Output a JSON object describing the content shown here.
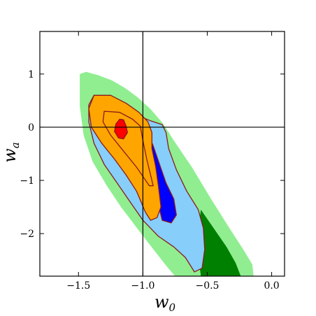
{
  "chart_data": {
    "type": "contour",
    "xlabel": "w",
    "xlabel_sub": "0",
    "ylabel": "w",
    "ylabel_sub": "a",
    "xlim": [
      -1.8,
      0.1
    ],
    "ylim": [
      -2.8,
      1.8
    ],
    "xticks": [
      -1.5,
      -1.0,
      -0.5,
      0.0
    ],
    "xtick_labels": [
      "−1.5",
      "−1.0",
      "−0.5",
      "0.0"
    ],
    "yticks": [
      1,
      0,
      -1,
      -2
    ],
    "ytick_labels": [
      "1",
      "0",
      "−1",
      "−2"
    ],
    "reference_lines": {
      "x": -1.0,
      "y": 0.0
    },
    "grid": false,
    "regions": [
      {
        "id": "outer-light-green",
        "fill": "#90ee90",
        "stroke": "none",
        "points": [
          [
            -1.49,
            1.0
          ],
          [
            -1.44,
            1.04
          ],
          [
            -1.35,
            0.98
          ],
          [
            -1.24,
            0.88
          ],
          [
            -1.14,
            0.74
          ],
          [
            -1.04,
            0.56
          ],
          [
            -0.94,
            0.34
          ],
          [
            -0.84,
            0.06
          ],
          [
            -0.76,
            -0.25
          ],
          [
            -0.62,
            -0.75
          ],
          [
            -0.47,
            -1.35
          ],
          [
            -0.34,
            -1.85
          ],
          [
            -0.22,
            -2.3
          ],
          [
            -0.15,
            -2.58
          ],
          [
            -0.14,
            -2.8
          ],
          [
            -0.75,
            -2.8
          ],
          [
            -0.82,
            -2.6
          ],
          [
            -0.95,
            -2.2
          ],
          [
            -1.06,
            -1.85
          ],
          [
            -1.17,
            -1.5
          ],
          [
            -1.28,
            -1.1
          ],
          [
            -1.39,
            -0.65
          ],
          [
            -1.46,
            -0.15
          ],
          [
            -1.49,
            0.4
          ]
        ]
      },
      {
        "id": "dark-green",
        "fill": "#008000",
        "stroke": "none",
        "points": [
          [
            -0.55,
            -1.55
          ],
          [
            -0.45,
            -1.9
          ],
          [
            -0.35,
            -2.25
          ],
          [
            -0.28,
            -2.55
          ],
          [
            -0.24,
            -2.8
          ],
          [
            -0.55,
            -2.8
          ],
          [
            -0.58,
            -2.2
          ]
        ]
      },
      {
        "id": "light-blue",
        "fill": "#87cefa",
        "stroke": "#8b1a1a",
        "points": [
          [
            -1.38,
            0.6
          ],
          [
            -1.3,
            0.55
          ],
          [
            -1.18,
            0.4
          ],
          [
            -1.06,
            0.24
          ],
          [
            -0.94,
            0.12
          ],
          [
            -0.85,
            0.05
          ],
          [
            -0.82,
            -0.1
          ],
          [
            -0.8,
            -0.4
          ],
          [
            -0.74,
            -0.8
          ],
          [
            -0.66,
            -1.2
          ],
          [
            -0.57,
            -1.55
          ],
          [
            -0.53,
            -1.9
          ],
          [
            -0.52,
            -2.3
          ],
          [
            -0.54,
            -2.65
          ],
          [
            -0.6,
            -2.72
          ],
          [
            -0.67,
            -2.45
          ],
          [
            -0.76,
            -2.25
          ],
          [
            -0.88,
            -2.05
          ],
          [
            -1.0,
            -1.75
          ],
          [
            -1.1,
            -1.4
          ],
          [
            -1.2,
            -1.05
          ],
          [
            -1.3,
            -0.7
          ],
          [
            -1.38,
            -0.3
          ],
          [
            -1.42,
            0.1
          ],
          [
            -1.42,
            0.42
          ]
        ]
      },
      {
        "id": "blue",
        "fill": "#0000ff",
        "stroke": "#8b1a1a",
        "points": [
          [
            -1.02,
            0.05
          ],
          [
            -0.97,
            -0.05
          ],
          [
            -0.92,
            -0.35
          ],
          [
            -0.87,
            -0.7
          ],
          [
            -0.82,
            -1.05
          ],
          [
            -0.76,
            -1.35
          ],
          [
            -0.74,
            -1.65
          ],
          [
            -0.78,
            -1.8
          ],
          [
            -0.85,
            -1.75
          ],
          [
            -0.88,
            -1.45
          ],
          [
            -0.93,
            -1.15
          ],
          [
            -1.0,
            -0.8
          ],
          [
            -1.06,
            -0.45
          ],
          [
            -1.1,
            -0.2
          ],
          [
            -1.08,
            -0.02
          ]
        ]
      },
      {
        "id": "orange",
        "fill": "#ffa500",
        "stroke": "#8b1a1a",
        "points": [
          [
            -1.38,
            0.6
          ],
          [
            -1.25,
            0.6
          ],
          [
            -1.13,
            0.45
          ],
          [
            -1.03,
            0.28
          ],
          [
            -0.96,
            0.1
          ],
          [
            -0.93,
            -0.1
          ],
          [
            -0.93,
            -0.4
          ],
          [
            -0.9,
            -0.75
          ],
          [
            -0.88,
            -1.1
          ],
          [
            -0.86,
            -1.5
          ],
          [
            -0.89,
            -1.7
          ],
          [
            -0.94,
            -1.75
          ],
          [
            -0.98,
            -1.6
          ],
          [
            -1.05,
            -1.2
          ],
          [
            -1.13,
            -0.9
          ],
          [
            -1.22,
            -0.6
          ],
          [
            -1.32,
            -0.3
          ],
          [
            -1.4,
            0.0
          ],
          [
            -1.42,
            0.35
          ]
        ]
      },
      {
        "id": "orange-inner-contour",
        "fill": "none",
        "stroke": "#8b1a1a",
        "points": [
          [
            -1.3,
            0.3
          ],
          [
            -1.18,
            0.28
          ],
          [
            -1.08,
            0.15
          ],
          [
            -1.02,
            0.02
          ],
          [
            -1.0,
            -0.25
          ],
          [
            -0.97,
            -0.6
          ],
          [
            -0.92,
            -1.1
          ],
          [
            -0.95,
            -1.1
          ],
          [
            -1.05,
            -0.75
          ],
          [
            -1.15,
            -0.45
          ],
          [
            -1.25,
            -0.15
          ],
          [
            -1.31,
            0.1
          ]
        ]
      },
      {
        "id": "red",
        "fill": "#ff0000",
        "stroke": "#8b1a1a",
        "points": [
          [
            -1.18,
            0.15
          ],
          [
            -1.15,
            0.14
          ],
          [
            -1.13,
            0.02
          ],
          [
            -1.12,
            -0.1
          ],
          [
            -1.15,
            -0.22
          ],
          [
            -1.19,
            -0.2
          ],
          [
            -1.22,
            -0.08
          ],
          [
            -1.21,
            0.06
          ]
        ]
      }
    ]
  }
}
